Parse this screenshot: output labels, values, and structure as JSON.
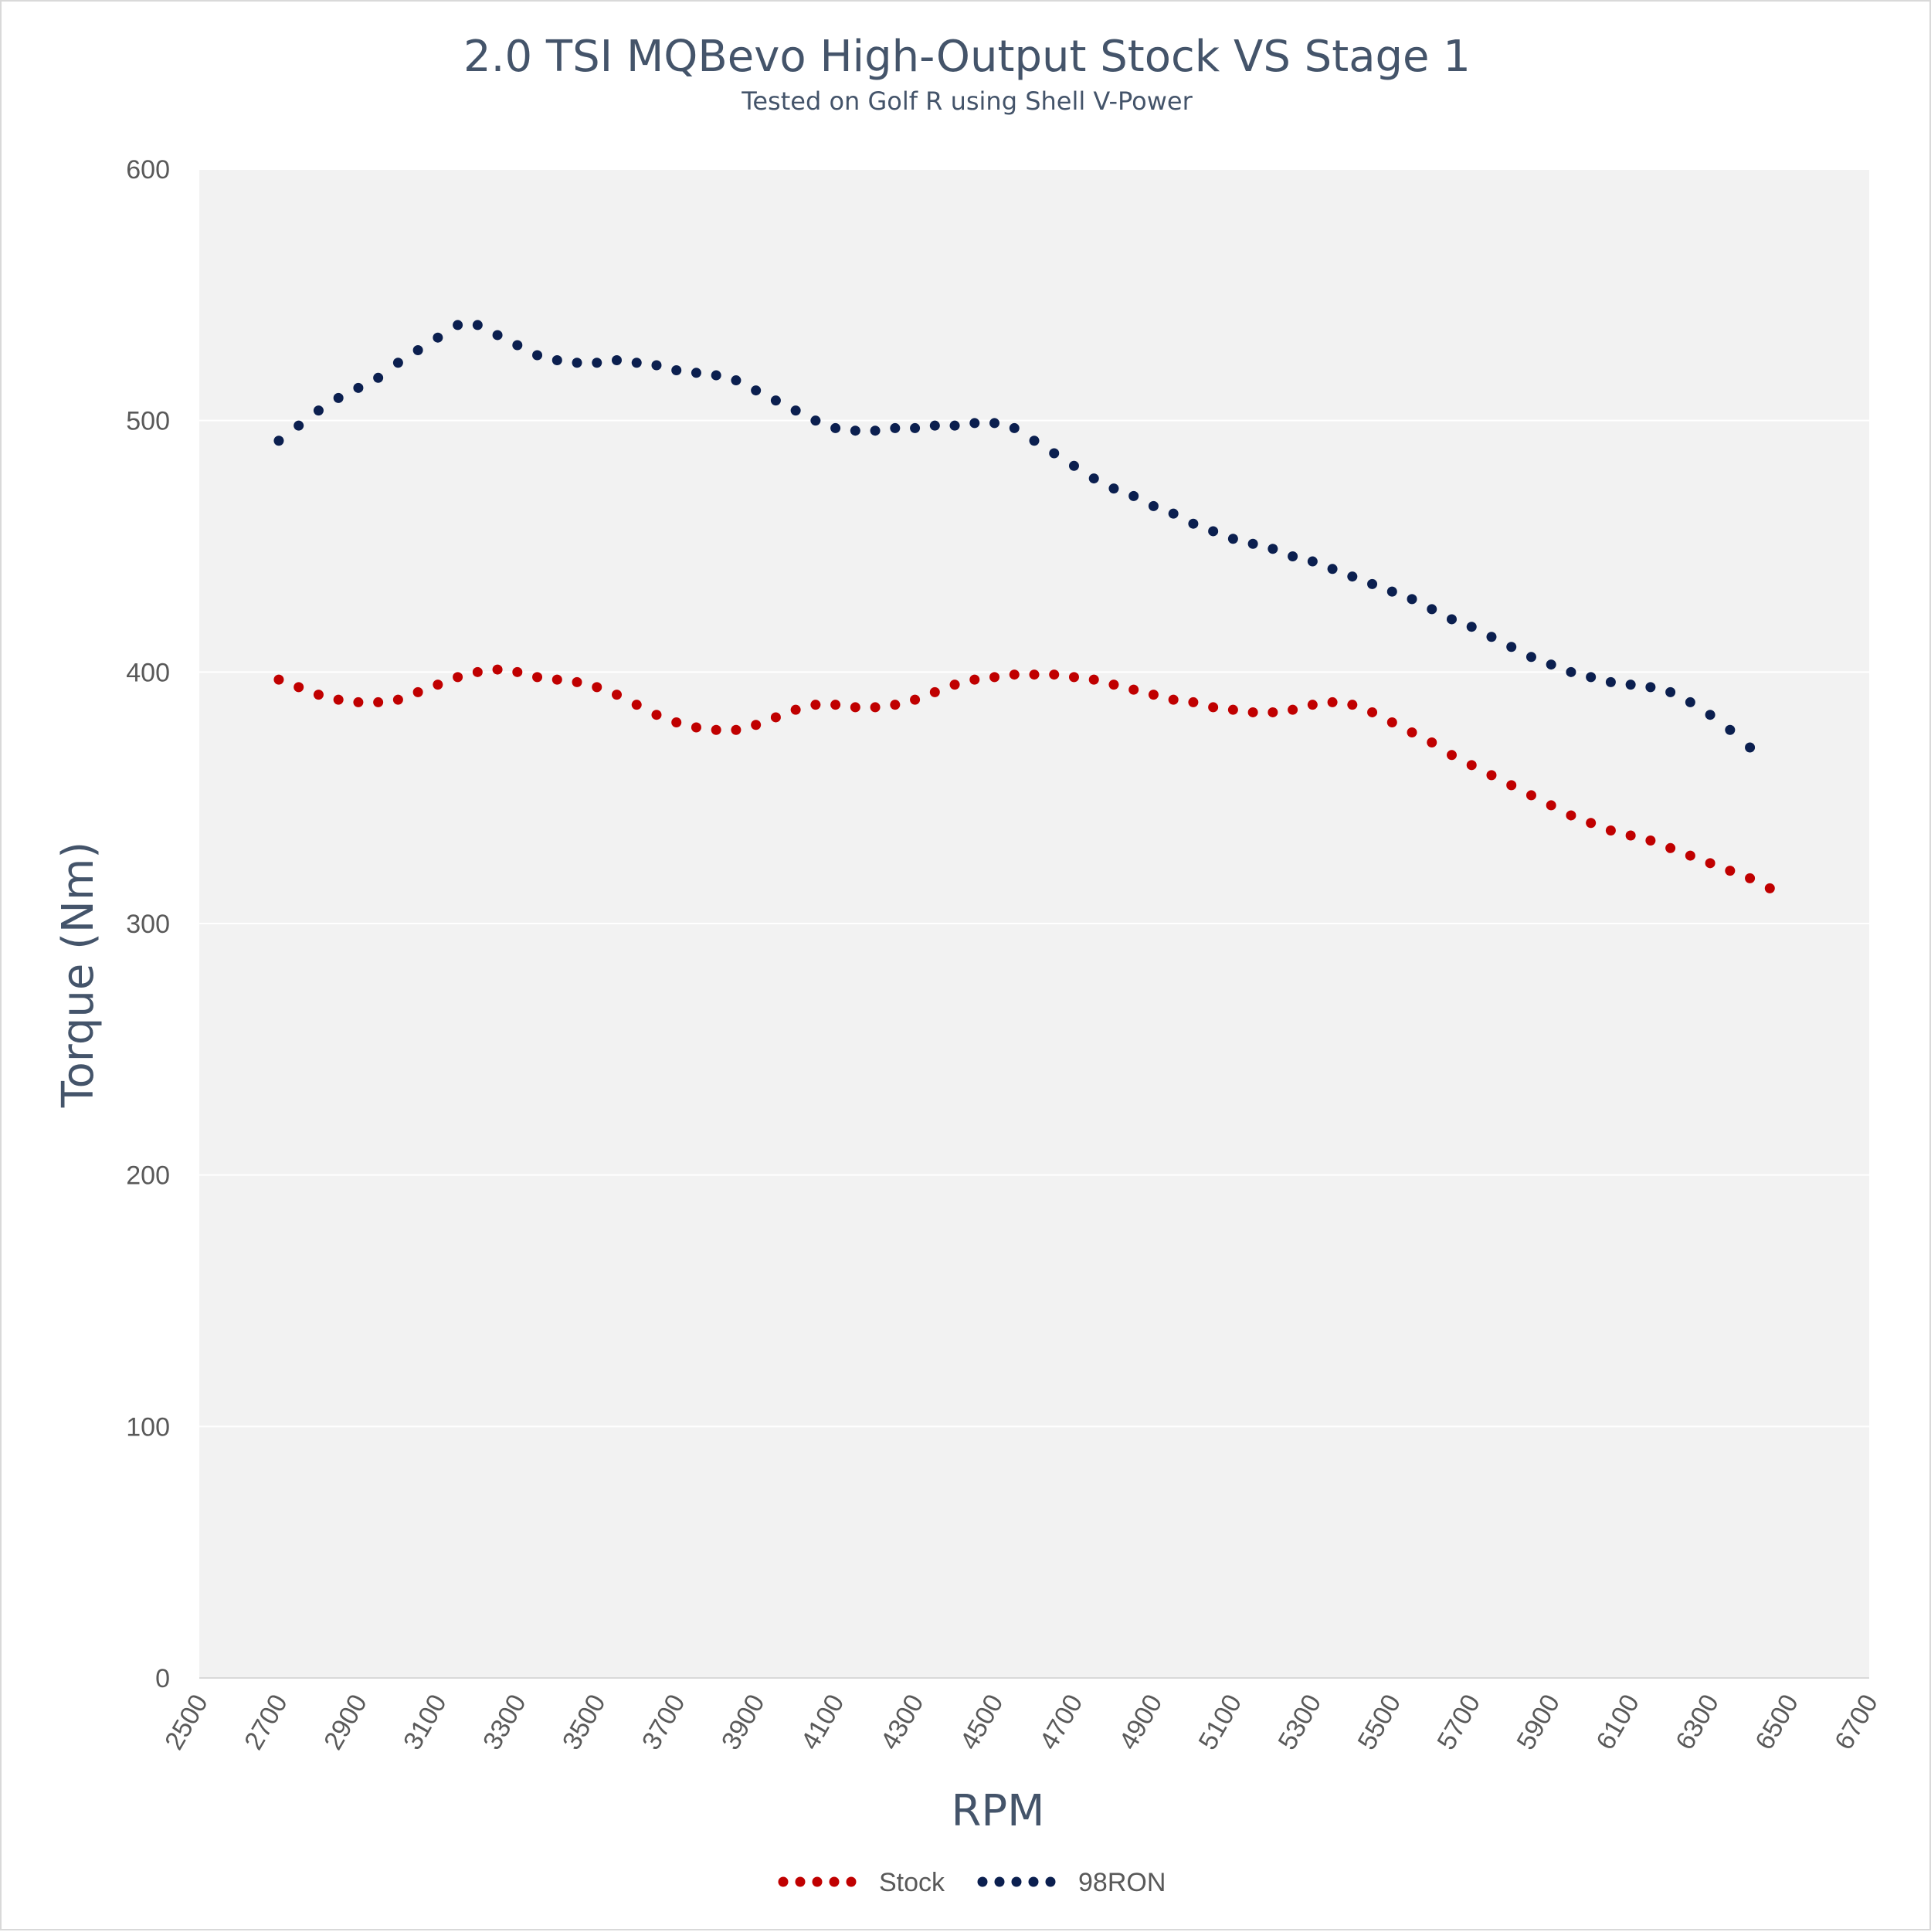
{
  "chart_data": {
    "type": "scatter",
    "title": "2.0 TSI MQBevo High-Output Stock VS Stage 1",
    "subtitle": "Tested on Golf R using Shell V-Power",
    "xlabel": "RPM",
    "ylabel": "Torque (Nm)",
    "xlim": [
      2500,
      6700
    ],
    "ylim": [
      0,
      600
    ],
    "xticks": [
      2500,
      2700,
      2900,
      3100,
      3300,
      3500,
      3700,
      3900,
      4100,
      4300,
      4500,
      4700,
      4900,
      5100,
      5300,
      5500,
      5700,
      5900,
      6100,
      6300,
      6500,
      6700
    ],
    "yticks": [
      0,
      100,
      200,
      300,
      400,
      500,
      600
    ],
    "grid": "horizontal",
    "legend_position": "bottom",
    "colors": {
      "Stock": "#c00000",
      "98RON": "#0b1f4f",
      "plot_bg": "#f2f2f2",
      "grid": "#ffffff",
      "axis": "#d9d9d9"
    },
    "series": [
      {
        "name": "Stock",
        "points": [
          [
            2700,
            397
          ],
          [
            2750,
            394
          ],
          [
            2800,
            391
          ],
          [
            2850,
            389
          ],
          [
            2900,
            388
          ],
          [
            2950,
            388
          ],
          [
            3000,
            389
          ],
          [
            3050,
            392
          ],
          [
            3100,
            395
          ],
          [
            3150,
            398
          ],
          [
            3200,
            400
          ],
          [
            3250,
            401
          ],
          [
            3300,
            400
          ],
          [
            3350,
            398
          ],
          [
            3400,
            397
          ],
          [
            3450,
            396
          ],
          [
            3500,
            394
          ],
          [
            3550,
            391
          ],
          [
            3600,
            387
          ],
          [
            3650,
            383
          ],
          [
            3700,
            380
          ],
          [
            3750,
            378
          ],
          [
            3800,
            377
          ],
          [
            3850,
            377
          ],
          [
            3900,
            379
          ],
          [
            3950,
            382
          ],
          [
            4000,
            385
          ],
          [
            4050,
            387
          ],
          [
            4100,
            387
          ],
          [
            4150,
            386
          ],
          [
            4200,
            386
          ],
          [
            4250,
            387
          ],
          [
            4300,
            389
          ],
          [
            4350,
            392
          ],
          [
            4400,
            395
          ],
          [
            4450,
            397
          ],
          [
            4500,
            398
          ],
          [
            4550,
            399
          ],
          [
            4600,
            399
          ],
          [
            4650,
            399
          ],
          [
            4700,
            398
          ],
          [
            4750,
            397
          ],
          [
            4800,
            395
          ],
          [
            4850,
            393
          ],
          [
            4900,
            391
          ],
          [
            4950,
            389
          ],
          [
            5000,
            388
          ],
          [
            5050,
            386
          ],
          [
            5100,
            385
          ],
          [
            5150,
            384
          ],
          [
            5200,
            384
          ],
          [
            5250,
            385
          ],
          [
            5300,
            387
          ],
          [
            5350,
            388
          ],
          [
            5400,
            387
          ],
          [
            5450,
            384
          ],
          [
            5500,
            380
          ],
          [
            5550,
            376
          ],
          [
            5600,
            372
          ],
          [
            5650,
            367
          ],
          [
            5700,
            363
          ],
          [
            5750,
            359
          ],
          [
            5800,
            355
          ],
          [
            5850,
            351
          ],
          [
            5900,
            347
          ],
          [
            5950,
            343
          ],
          [
            6000,
            340
          ],
          [
            6050,
            337
          ],
          [
            6100,
            335
          ],
          [
            6150,
            333
          ],
          [
            6200,
            330
          ],
          [
            6250,
            327
          ],
          [
            6300,
            324
          ],
          [
            6350,
            321
          ],
          [
            6400,
            318
          ],
          [
            6450,
            314
          ]
        ]
      },
      {
        "name": "98RON",
        "points": [
          [
            2700,
            492
          ],
          [
            2750,
            498
          ],
          [
            2800,
            504
          ],
          [
            2850,
            509
          ],
          [
            2900,
            513
          ],
          [
            2950,
            517
          ],
          [
            3000,
            523
          ],
          [
            3050,
            528
          ],
          [
            3100,
            533
          ],
          [
            3150,
            538
          ],
          [
            3200,
            538
          ],
          [
            3250,
            534
          ],
          [
            3300,
            530
          ],
          [
            3350,
            526
          ],
          [
            3400,
            524
          ],
          [
            3450,
            523
          ],
          [
            3500,
            523
          ],
          [
            3550,
            524
          ],
          [
            3600,
            523
          ],
          [
            3650,
            522
          ],
          [
            3700,
            520
          ],
          [
            3750,
            519
          ],
          [
            3800,
            518
          ],
          [
            3850,
            516
          ],
          [
            3900,
            512
          ],
          [
            3950,
            508
          ],
          [
            4000,
            504
          ],
          [
            4050,
            500
          ],
          [
            4100,
            497
          ],
          [
            4150,
            496
          ],
          [
            4200,
            496
          ],
          [
            4250,
            497
          ],
          [
            4300,
            497
          ],
          [
            4350,
            498
          ],
          [
            4400,
            498
          ],
          [
            4450,
            499
          ],
          [
            4500,
            499
          ],
          [
            4550,
            497
          ],
          [
            4600,
            492
          ],
          [
            4650,
            487
          ],
          [
            4700,
            482
          ],
          [
            4750,
            477
          ],
          [
            4800,
            473
          ],
          [
            4850,
            470
          ],
          [
            4900,
            466
          ],
          [
            4950,
            463
          ],
          [
            5000,
            459
          ],
          [
            5050,
            456
          ],
          [
            5100,
            453
          ],
          [
            5150,
            451
          ],
          [
            5200,
            449
          ],
          [
            5250,
            446
          ],
          [
            5300,
            444
          ],
          [
            5350,
            441
          ],
          [
            5400,
            438
          ],
          [
            5450,
            435
          ],
          [
            5500,
            432
          ],
          [
            5550,
            429
          ],
          [
            5600,
            425
          ],
          [
            5650,
            421
          ],
          [
            5700,
            418
          ],
          [
            5750,
            414
          ],
          [
            5800,
            410
          ],
          [
            5850,
            406
          ],
          [
            5900,
            403
          ],
          [
            5950,
            400
          ],
          [
            6000,
            398
          ],
          [
            6050,
            396
          ],
          [
            6100,
            395
          ],
          [
            6150,
            394
          ],
          [
            6200,
            392
          ],
          [
            6250,
            388
          ],
          [
            6300,
            383
          ],
          [
            6350,
            377
          ],
          [
            6400,
            370
          ]
        ]
      }
    ]
  }
}
